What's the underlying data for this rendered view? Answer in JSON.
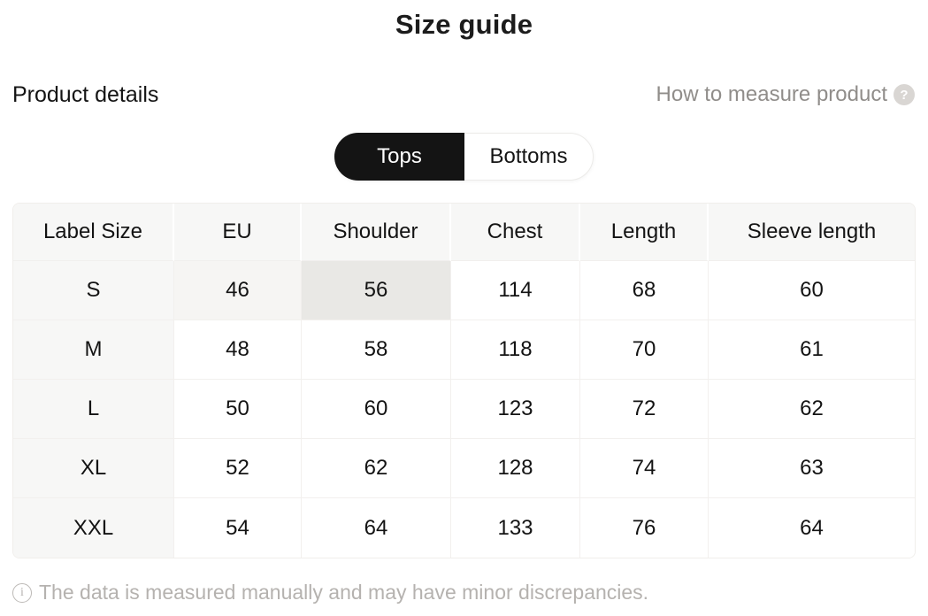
{
  "page": {
    "title": "Size guide",
    "section_title": "Product details",
    "help_link": {
      "label": "How to measure product",
      "icon_glyph": "?"
    },
    "footnote": {
      "icon_glyph": "i",
      "text": "The data is measured manually and may have minor discrepancies."
    }
  },
  "category_toggle": {
    "options": [
      {
        "label": "Tops",
        "active": true
      },
      {
        "label": "Bottoms",
        "active": false
      }
    ]
  },
  "size_table": {
    "headers": [
      "Label Size",
      "EU",
      "Shoulder",
      "Chest",
      "Length",
      "Sleeve length"
    ],
    "rows": [
      {
        "label": "S",
        "values": [
          "46",
          "56",
          "114",
          "68",
          "60"
        ]
      },
      {
        "label": "M",
        "values": [
          "48",
          "58",
          "118",
          "70",
          "61"
        ]
      },
      {
        "label": "L",
        "values": [
          "50",
          "60",
          "123",
          "72",
          "62"
        ]
      },
      {
        "label": "XL",
        "values": [
          "52",
          "62",
          "128",
          "74",
          "63"
        ]
      },
      {
        "label": "XXL",
        "values": [
          "54",
          "64",
          "133",
          "76",
          "64"
        ]
      }
    ],
    "highlight": {
      "row_label": "S",
      "column": "Shoulder",
      "cell_value": "56",
      "col_index": 2,
      "trail_col_indices": [
        1
      ]
    }
  },
  "colors": {
    "header_cell_bg": "#f7f7f6",
    "label_column_bg": "#f7f7f6",
    "highlight_cell_bg": "#e9e8e5",
    "highlight_trail_bg": "#f6f5f3",
    "active_toggle_bg": "#141414",
    "active_toggle_text": "#ffffff",
    "muted_text": "#908d8a",
    "footnote_text": "#b5b2af",
    "grid_line": "#f2f0ee"
  }
}
